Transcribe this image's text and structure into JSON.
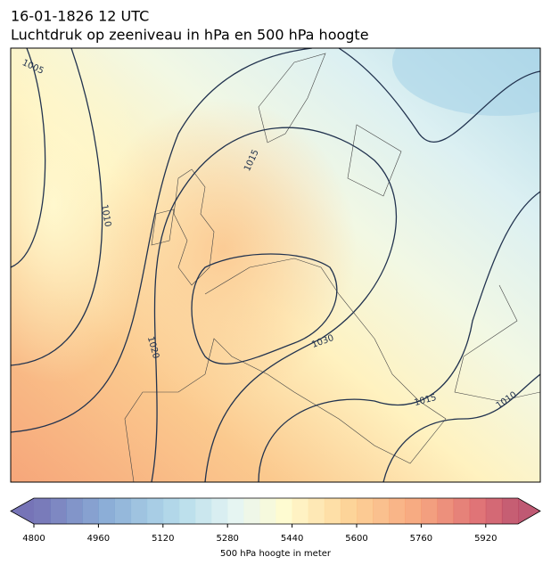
{
  "header": {
    "date": "16-01-1826 12 UTC",
    "title": "Luchtdruk op zeeniveau in hPa en 500 hPa hoogte"
  },
  "contour_labels": [
    "1005",
    "1010",
    "1015",
    "1020",
    "1030",
    "1015",
    "1010"
  ],
  "colorbar": {
    "lim": [
      4800,
      6000
    ],
    "ticks": [
      4800,
      4960,
      5120,
      5280,
      5440,
      5600,
      5760,
      5920
    ],
    "label": "500 hPa hoogte in meter"
  }
}
